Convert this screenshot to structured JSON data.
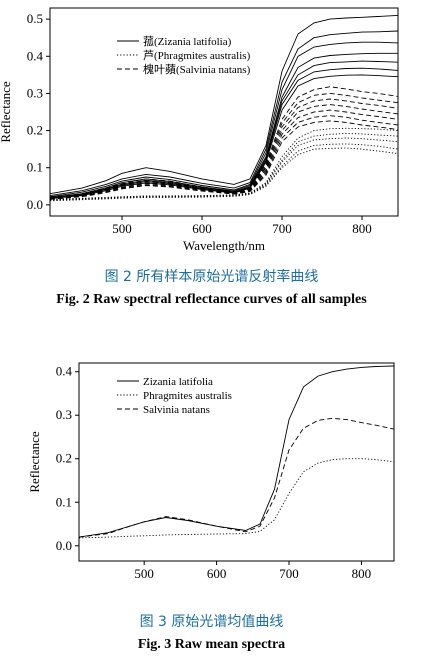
{
  "figures": [
    {
      "caption_cn": "图 2   所有样本原始光谱反射率曲线",
      "caption_en": "Fig. 2   Raw spectral reflectance curves of all samples"
    },
    {
      "caption_cn": "图 3   原始光谱均值曲线",
      "caption_en": "Fig. 3   Raw mean spectra"
    }
  ],
  "chart_data": [
    {
      "type": "line",
      "title": "",
      "xlabel": "Wavelength/nm",
      "ylabel": "Reflectance",
      "xlim": [
        410,
        845
      ],
      "ylim": [
        -0.03,
        0.53
      ],
      "xticks": [
        500,
        600,
        700,
        800
      ],
      "xtick_labels": [
        "500",
        "600",
        "700",
        "800"
      ],
      "yticks": [
        0.0,
        0.1,
        0.2,
        0.3,
        0.4,
        0.5
      ],
      "ytick_labels": [
        "0.0",
        "0.1",
        "0.2",
        "0.3",
        "0.4",
        "0.5"
      ],
      "legend_position": "top-left",
      "grid": false,
      "legend": [
        {
          "label": "菰(Zizania latifolia)",
          "dash": "solid"
        },
        {
          "label": "芦(Phragmites australis)",
          "dash": "dotted"
        },
        {
          "label": "槐叶蘋(Salvinia natans)",
          "dash": "dashed"
        }
      ],
      "x": [
        410,
        450,
        480,
        500,
        530,
        560,
        600,
        640,
        660,
        680,
        700,
        720,
        740,
        760,
        780,
        800,
        820,
        845
      ],
      "series": [
        {
          "name": "菰(Zizania latifolia)",
          "values": [
            0.03,
            0.045,
            0.065,
            0.085,
            0.1,
            0.09,
            0.07,
            0.055,
            0.07,
            0.16,
            0.36,
            0.46,
            0.49,
            0.5,
            0.503,
            0.505,
            0.507,
            0.51
          ]
        },
        {
          "name": "菰(Zizania latifolia)",
          "values": [
            0.025,
            0.038,
            0.055,
            0.07,
            0.082,
            0.075,
            0.058,
            0.045,
            0.06,
            0.15,
            0.33,
            0.42,
            0.45,
            0.458,
            0.462,
            0.465,
            0.466,
            0.468
          ]
        },
        {
          "name": "菰(Zizania latifolia)",
          "values": [
            0.022,
            0.034,
            0.05,
            0.064,
            0.075,
            0.068,
            0.052,
            0.04,
            0.055,
            0.14,
            0.31,
            0.4,
            0.425,
            0.432,
            0.436,
            0.438,
            0.438,
            0.436
          ]
        },
        {
          "name": "菰(Zizania latifolia)",
          "values": [
            0.02,
            0.03,
            0.046,
            0.06,
            0.07,
            0.063,
            0.048,
            0.037,
            0.052,
            0.13,
            0.29,
            0.37,
            0.395,
            0.402,
            0.405,
            0.407,
            0.408,
            0.408
          ]
        },
        {
          "name": "菰(Zizania latifolia)",
          "values": [
            0.019,
            0.028,
            0.043,
            0.056,
            0.066,
            0.06,
            0.045,
            0.035,
            0.049,
            0.125,
            0.28,
            0.35,
            0.375,
            0.383,
            0.385,
            0.387,
            0.386,
            0.384
          ]
        },
        {
          "name": "菰(Zizania latifolia)",
          "values": [
            0.018,
            0.027,
            0.041,
            0.053,
            0.063,
            0.057,
            0.043,
            0.034,
            0.047,
            0.12,
            0.27,
            0.335,
            0.358,
            0.364,
            0.367,
            0.368,
            0.366,
            0.362
          ]
        },
        {
          "name": "菰(Zizania latifolia)",
          "values": [
            0.017,
            0.025,
            0.038,
            0.05,
            0.059,
            0.054,
            0.041,
            0.032,
            0.045,
            0.115,
            0.255,
            0.32,
            0.34,
            0.346,
            0.349,
            0.35,
            0.348,
            0.345
          ]
        },
        {
          "name": "芦(Phragmites australis)",
          "values": [
            0.015,
            0.018,
            0.02,
            0.022,
            0.024,
            0.024,
            0.025,
            0.027,
            0.032,
            0.06,
            0.13,
            0.18,
            0.2,
            0.205,
            0.206,
            0.205,
            0.204,
            0.2
          ]
        },
        {
          "name": "芦(Phragmites australis)",
          "values": [
            0.014,
            0.017,
            0.019,
            0.021,
            0.023,
            0.023,
            0.024,
            0.026,
            0.031,
            0.058,
            0.12,
            0.17,
            0.185,
            0.19,
            0.192,
            0.191,
            0.188,
            0.185
          ]
        },
        {
          "name": "芦(Phragmites australis)",
          "values": [
            0.013,
            0.016,
            0.018,
            0.02,
            0.022,
            0.022,
            0.023,
            0.025,
            0.03,
            0.055,
            0.115,
            0.16,
            0.175,
            0.178,
            0.18,
            0.178,
            0.175,
            0.17
          ]
        },
        {
          "name": "芦(Phragmites australis)",
          "values": [
            0.012,
            0.015,
            0.017,
            0.019,
            0.021,
            0.021,
            0.022,
            0.024,
            0.029,
            0.052,
            0.105,
            0.145,
            0.16,
            0.163,
            0.164,
            0.162,
            0.158,
            0.15
          ]
        },
        {
          "name": "芦(Phragmites australis)",
          "values": [
            0.011,
            0.014,
            0.016,
            0.018,
            0.02,
            0.02,
            0.021,
            0.023,
            0.028,
            0.05,
            0.1,
            0.135,
            0.15,
            0.152,
            0.153,
            0.15,
            0.145,
            0.138
          ]
        },
        {
          "name": "槐叶蘋(Salvinia natans)",
          "values": [
            0.02,
            0.03,
            0.045,
            0.057,
            0.07,
            0.064,
            0.048,
            0.035,
            0.045,
            0.11,
            0.23,
            0.29,
            0.31,
            0.318,
            0.312,
            0.305,
            0.3,
            0.292
          ]
        },
        {
          "name": "槐叶蘋(Salvinia natans)",
          "values": [
            0.019,
            0.028,
            0.043,
            0.054,
            0.066,
            0.06,
            0.046,
            0.034,
            0.043,
            0.105,
            0.22,
            0.275,
            0.295,
            0.3,
            0.295,
            0.288,
            0.282,
            0.275
          ]
        },
        {
          "name": "槐叶蘋(Salvinia natans)",
          "values": [
            0.018,
            0.027,
            0.041,
            0.052,
            0.063,
            0.058,
            0.044,
            0.033,
            0.042,
            0.1,
            0.21,
            0.262,
            0.28,
            0.285,
            0.28,
            0.273,
            0.268,
            0.26
          ]
        },
        {
          "name": "槐叶蘋(Salvinia natans)",
          "values": [
            0.017,
            0.026,
            0.039,
            0.05,
            0.06,
            0.055,
            0.042,
            0.032,
            0.04,
            0.095,
            0.2,
            0.25,
            0.265,
            0.27,
            0.265,
            0.258,
            0.252,
            0.245
          ]
        },
        {
          "name": "槐叶蘋(Salvinia natans)",
          "values": [
            0.016,
            0.024,
            0.037,
            0.047,
            0.057,
            0.052,
            0.04,
            0.031,
            0.039,
            0.09,
            0.19,
            0.235,
            0.25,
            0.255,
            0.25,
            0.243,
            0.238,
            0.23
          ]
        },
        {
          "name": "槐叶蘋(Salvinia natans)",
          "values": [
            0.015,
            0.023,
            0.035,
            0.045,
            0.054,
            0.05,
            0.038,
            0.03,
            0.037,
            0.085,
            0.18,
            0.222,
            0.236,
            0.24,
            0.236,
            0.228,
            0.222,
            0.215
          ]
        },
        {
          "name": "槐叶蘋(Salvinia natans)",
          "values": [
            0.015,
            0.022,
            0.033,
            0.043,
            0.052,
            0.048,
            0.037,
            0.029,
            0.036,
            0.08,
            0.17,
            0.21,
            0.222,
            0.226,
            0.222,
            0.215,
            0.21,
            0.203
          ]
        }
      ]
    },
    {
      "type": "line",
      "title": "",
      "xlabel": "",
      "ylabel": "Reflectance",
      "xlim": [
        410,
        845
      ],
      "ylim": [
        -0.035,
        0.42
      ],
      "xticks": [
        500,
        600,
        700,
        800
      ],
      "xtick_labels": [
        "500",
        "600",
        "700",
        "800"
      ],
      "yticks": [
        0.0,
        0.1,
        0.2,
        0.3,
        0.4
      ],
      "ytick_labels": [
        "0.0",
        "0.1",
        "0.2",
        "0.3",
        "0.4"
      ],
      "legend_position": "top-left",
      "grid": false,
      "x": [
        410,
        450,
        480,
        500,
        530,
        560,
        600,
        640,
        660,
        680,
        700,
        720,
        740,
        760,
        780,
        800,
        820,
        845
      ],
      "series": [
        {
          "name": "Zizania latifolia",
          "dash": "solid",
          "values": [
            0.02,
            0.03,
            0.045,
            0.055,
            0.065,
            0.058,
            0.045,
            0.035,
            0.05,
            0.13,
            0.29,
            0.365,
            0.39,
            0.4,
            0.406,
            0.41,
            0.412,
            0.413
          ]
        },
        {
          "name": "Phragmites australis",
          "dash": "dotted",
          "values": [
            0.018,
            0.02,
            0.022,
            0.023,
            0.025,
            0.026,
            0.027,
            0.028,
            0.033,
            0.06,
            0.12,
            0.17,
            0.19,
            0.198,
            0.2,
            0.2,
            0.198,
            0.193
          ]
        },
        {
          "name": "Salvinia natans",
          "dash": "dashed",
          "values": [
            0.02,
            0.028,
            0.045,
            0.055,
            0.067,
            0.06,
            0.045,
            0.032,
            0.045,
            0.11,
            0.22,
            0.27,
            0.288,
            0.293,
            0.29,
            0.283,
            0.277,
            0.268
          ]
        }
      ]
    }
  ]
}
